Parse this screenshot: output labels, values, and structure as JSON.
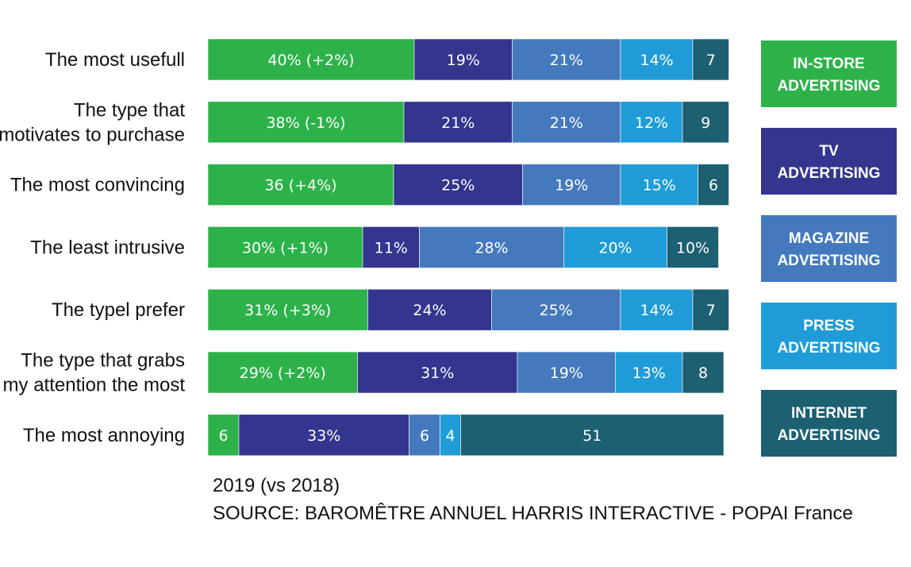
{
  "chart_data": {
    "type": "bar",
    "orientation": "horizontal",
    "stacked": true,
    "categories": [
      [
        "The most usefull"
      ],
      [
        "The type that",
        "motivates to purchase"
      ],
      [
        "The most convincing"
      ],
      [
        "The least intrusive"
      ],
      [
        "The typel prefer"
      ],
      [
        "The type that grabs",
        "my attention the most"
      ],
      [
        "The most annoying"
      ]
    ],
    "series": [
      {
        "name": "IN-STORE ADVERTISING",
        "legend_lines": [
          "IN-STORE",
          "ADVERTISING"
        ],
        "color": "#2db24a",
        "values": [
          40,
          38,
          36,
          30,
          31,
          29,
          6
        ],
        "labels": [
          "40% (+2%)",
          "38% (-1%)",
          "36 (+4%)",
          "30% (+1%)",
          "31% (+3%)",
          "29% (+2%)",
          "6"
        ]
      },
      {
        "name": "TV ADVERTISING",
        "legend_lines": [
          "TV",
          "ADVERTISING"
        ],
        "color": "#33358f",
        "values": [
          19,
          21,
          25,
          11,
          24,
          31,
          33
        ],
        "labels": [
          "19%",
          "21%",
          "25%",
          "11%",
          "24%",
          "31%",
          "33%"
        ]
      },
      {
        "name": "MAGAZINE ADVERTISING",
        "legend_lines": [
          "MAGAZINE",
          "ADVERTISING"
        ],
        "color": "#4479be",
        "values": [
          21,
          21,
          19,
          28,
          25,
          19,
          6
        ],
        "labels": [
          "21%",
          "21%",
          "19%",
          "28%",
          "25%",
          "19%",
          "6"
        ]
      },
      {
        "name": "PRESS ADVERTISING",
        "legend_lines": [
          "PRESS",
          "ADVERTISING"
        ],
        "color": "#1f9cd7",
        "values": [
          14,
          12,
          15,
          20,
          14,
          13,
          4
        ],
        "labels": [
          "14%",
          "12%",
          "15%",
          "20%",
          "14%",
          "13%",
          "4"
        ]
      },
      {
        "name": "INTERNET ADVERTISING",
        "legend_lines": [
          "INTERNET",
          "ADVERTISING"
        ],
        "color": "#1c6072",
        "values": [
          7,
          9,
          6,
          10,
          7,
          8,
          51
        ],
        "labels": [
          "7",
          "9",
          "6",
          "10%",
          "7",
          "8",
          "51"
        ]
      }
    ],
    "xlim": [
      0,
      100
    ],
    "grid": false,
    "legend": "right"
  },
  "footnote": {
    "line1": "2019 (vs 2018)",
    "line2": "SOURCE: BAROMÊTRE ANNUEL HARRIS INTERACTIVE - POPAI France"
  }
}
